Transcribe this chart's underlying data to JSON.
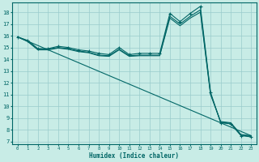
{
  "title": "",
  "xlabel": "Humidex (Indice chaleur)",
  "ylabel": "",
  "bg_color": "#c8ece6",
  "grid_color": "#99cccc",
  "line_color": "#006666",
  "xlim": [
    -0.5,
    23.5
  ],
  "ylim": [
    6.8,
    18.8
  ],
  "xticks": [
    0,
    1,
    2,
    3,
    4,
    5,
    6,
    7,
    8,
    9,
    10,
    11,
    12,
    13,
    14,
    15,
    16,
    17,
    18,
    19,
    20,
    21,
    22,
    23
  ],
  "yticks": [
    7,
    8,
    9,
    10,
    11,
    12,
    13,
    14,
    15,
    16,
    17,
    18
  ],
  "series1_x": [
    0,
    1,
    2,
    3,
    4,
    5,
    6,
    7,
    8,
    9,
    10,
    11,
    12,
    13,
    14,
    15,
    16,
    17,
    18,
    19,
    20,
    21,
    22,
    23
  ],
  "series1_y": [
    15.9,
    15.6,
    14.9,
    14.9,
    15.1,
    15.0,
    14.8,
    14.7,
    14.5,
    14.4,
    15.0,
    14.4,
    14.5,
    14.5,
    14.5,
    17.9,
    17.2,
    17.9,
    18.5,
    11.2,
    8.6,
    8.5,
    7.5,
    7.4
  ],
  "series2_x": [
    0,
    1,
    2,
    3,
    4,
    5,
    6,
    7,
    8,
    9,
    10,
    11,
    12,
    13,
    14,
    15,
    16,
    17,
    18,
    19,
    20,
    21,
    22,
    23
  ],
  "series2_y": [
    15.9,
    15.55,
    14.85,
    14.85,
    15.0,
    14.9,
    14.7,
    14.6,
    14.35,
    14.3,
    14.85,
    14.3,
    14.35,
    14.35,
    14.35,
    17.65,
    17.0,
    17.65,
    18.2,
    11.1,
    8.65,
    8.55,
    7.55,
    7.45
  ],
  "series3_x": [
    0,
    1,
    2,
    3,
    4,
    5,
    6,
    7,
    8,
    9,
    10,
    11,
    12,
    13,
    14,
    15,
    16,
    17,
    18,
    19,
    20,
    21,
    22,
    23
  ],
  "series3_y": [
    15.9,
    15.5,
    14.8,
    14.8,
    14.95,
    14.85,
    14.65,
    14.55,
    14.3,
    14.25,
    14.8,
    14.25,
    14.3,
    14.3,
    14.3,
    17.5,
    16.85,
    17.5,
    18.0,
    11.0,
    8.7,
    8.6,
    7.6,
    7.5
  ],
  "series4_x": [
    0,
    23
  ],
  "series4_y": [
    15.9,
    7.5
  ]
}
